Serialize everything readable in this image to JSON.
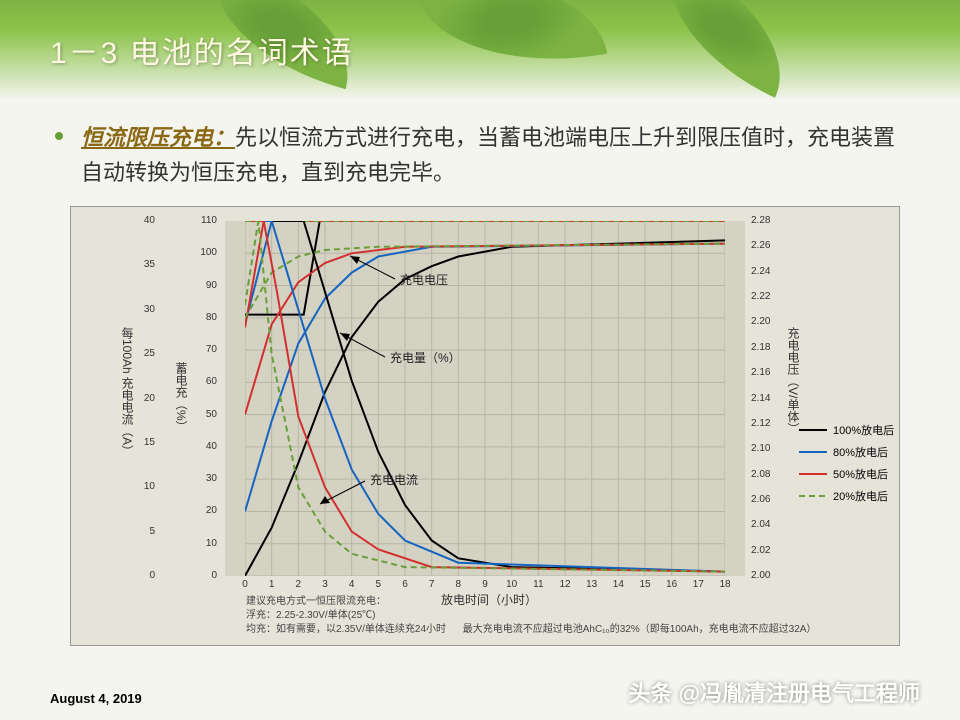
{
  "slide": {
    "title": "1－3   电池的名词术语",
    "bullet_term": "恒流限压充电：",
    "bullet_body": "先以恒流方式进行充电，当蓄电池端电压上升到限压值时，充电装置自动转换为恒压充电，直到充电完毕。",
    "date": "August 4, 2019",
    "watermark": "头条 @冯胤清注册电气工程师"
  },
  "chart": {
    "type": "line",
    "background_color": "#e6e4d8",
    "plot_background": "#d4d2c3",
    "grid_color": "#b8b5a5",
    "x_axis": {
      "title": "放电时间（小时）",
      "min": 0,
      "max": 18,
      "ticks": [
        0,
        1,
        2,
        3,
        4,
        5,
        6,
        7,
        8,
        9,
        10,
        11,
        12,
        13,
        14,
        15,
        16,
        17,
        18
      ]
    },
    "y_left_current": {
      "title": "每100Ah 充电电流（A）",
      "min": 0,
      "max": 40,
      "ticks": [
        0,
        5,
        10,
        15,
        20,
        25,
        30,
        35,
        40
      ]
    },
    "y_left_charge": {
      "title": "蓄电充（%）",
      "min": 0,
      "max": 110,
      "ticks": [
        0,
        10,
        20,
        30,
        40,
        50,
        60,
        70,
        80,
        90,
        100,
        110
      ]
    },
    "y_right_voltage": {
      "title": "充电电压（V/单体）",
      "min": 2.0,
      "max": 2.28,
      "ticks": [
        2.0,
        2.02,
        2.04,
        2.06,
        2.08,
        2.1,
        2.12,
        2.14,
        2.16,
        2.18,
        2.2,
        2.22,
        2.24,
        2.26,
        2.28
      ]
    },
    "annotations": {
      "voltage": "充电电压",
      "charge_pct": "充电量（%）",
      "current": "充电电流"
    },
    "legend": [
      {
        "label": "100%放电后",
        "color": "#000000",
        "dash": false
      },
      {
        "label": "80%放电后",
        "color": "#1565c0",
        "dash": false
      },
      {
        "label": "50%放电后",
        "color": "#d32f2f",
        "dash": false
      },
      {
        "label": "20%放电后",
        "color": "#689f38",
        "dash": true
      }
    ],
    "series_colors": {
      "black": "#000000",
      "blue": "#1565c0",
      "red": "#d32f2f",
      "green": "#689f38"
    },
    "series": {
      "voltage_black": [
        [
          0,
          81
        ],
        [
          2.2,
          81
        ],
        [
          2.8,
          110
        ],
        [
          18,
          110
        ]
      ],
      "voltage_blue": [
        [
          0,
          78
        ],
        [
          1.0,
          110
        ],
        [
          18,
          110
        ]
      ],
      "voltage_red": [
        [
          0,
          77
        ],
        [
          0.7,
          110
        ],
        [
          18,
          110
        ]
      ],
      "voltage_green": [
        [
          0,
          84
        ],
        [
          0.5,
          110
        ],
        [
          18,
          110
        ]
      ],
      "current_black": [
        [
          0,
          40
        ],
        [
          2.2,
          40
        ],
        [
          2.8,
          34
        ],
        [
          4,
          22
        ],
        [
          5,
          14
        ],
        [
          6,
          8
        ],
        [
          7,
          4
        ],
        [
          8,
          2
        ],
        [
          10,
          1
        ],
        [
          18,
          0.5
        ]
      ],
      "current_blue": [
        [
          0,
          40
        ],
        [
          1.0,
          40
        ],
        [
          1.6,
          34
        ],
        [
          3,
          20
        ],
        [
          4,
          12
        ],
        [
          5,
          7
        ],
        [
          6,
          4
        ],
        [
          8,
          1.5
        ],
        [
          18,
          0.5
        ]
      ],
      "current_red": [
        [
          0,
          40
        ],
        [
          0.7,
          40
        ],
        [
          1.2,
          32
        ],
        [
          2,
          18
        ],
        [
          3,
          10
        ],
        [
          4,
          5
        ],
        [
          5,
          3
        ],
        [
          7,
          1
        ],
        [
          18,
          0.5
        ]
      ],
      "current_green": [
        [
          0,
          40
        ],
        [
          0.5,
          40
        ],
        [
          1,
          25
        ],
        [
          2,
          10
        ],
        [
          3,
          5
        ],
        [
          4,
          2.5
        ],
        [
          6,
          1
        ],
        [
          18,
          0.5
        ]
      ],
      "charge_black": [
        [
          0,
          0
        ],
        [
          1,
          15
        ],
        [
          2,
          35
        ],
        [
          3,
          57
        ],
        [
          4,
          74
        ],
        [
          5,
          85
        ],
        [
          6,
          92
        ],
        [
          7,
          96
        ],
        [
          8,
          99
        ],
        [
          10,
          102
        ],
        [
          18,
          104
        ]
      ],
      "charge_blue": [
        [
          0,
          20
        ],
        [
          1,
          48
        ],
        [
          2,
          72
        ],
        [
          3,
          86
        ],
        [
          4,
          94
        ],
        [
          5,
          99
        ],
        [
          7,
          102
        ],
        [
          18,
          103
        ]
      ],
      "charge_red": [
        [
          0,
          50
        ],
        [
          1,
          78
        ],
        [
          2,
          91
        ],
        [
          3,
          97
        ],
        [
          4,
          100
        ],
        [
          6,
          102
        ],
        [
          18,
          103
        ]
      ],
      "charge_green": [
        [
          0,
          80
        ],
        [
          1,
          94
        ],
        [
          2,
          99
        ],
        [
          3,
          101
        ],
        [
          5,
          102
        ],
        [
          18,
          103
        ]
      ]
    },
    "notes": {
      "l1": "建议充电方式一恒压限流充电：",
      "l2": "浮充：2.25-2.30V/单体(25℃)",
      "l3": "均充：如有需要，以2.35V/单体连续充24小时",
      "l4": "最大充电电流不应超过电池AhC₁₀的32%（即每100Ah，充电电流不应超过32A）"
    }
  }
}
